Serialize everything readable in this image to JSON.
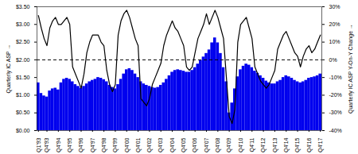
{
  "chart_data": {
    "type": "bar",
    "categories": [
      "Q1'93",
      null,
      null,
      "Q4'93",
      null,
      null,
      null,
      "Q4'94",
      null,
      null,
      null,
      "Q4'95",
      null,
      null,
      null,
      "Q4'96",
      null,
      null,
      null,
      "Q4'97",
      null,
      null,
      null,
      "Q4'98",
      null,
      null,
      null,
      "Q4'99",
      null,
      null,
      null,
      "Q4'00",
      null,
      null,
      null,
      "Q4'01",
      null,
      null,
      null,
      "Q4'02",
      null,
      null,
      null,
      "Q4'03",
      null,
      null,
      null,
      "Q4'04",
      null,
      null,
      null,
      "Q4'05",
      null,
      null,
      null,
      "Q4'06",
      null,
      null,
      null,
      "Q4'07",
      null,
      null,
      null,
      "Q4'08",
      null,
      null,
      null,
      "Q4'09",
      null,
      null,
      null,
      "Q4'10",
      null,
      null,
      null,
      "Q4'11",
      null,
      null,
      null,
      "Q4'12",
      null,
      null,
      null,
      "Q4'13",
      null,
      null,
      null,
      "Q4'14",
      null,
      null,
      null,
      "Q4'15",
      null,
      null,
      null,
      "Q4'16",
      null,
      null,
      null,
      "Q4'17"
    ],
    "series": [
      {
        "type": "bar",
        "color": "#0000EE",
        "values": [
          1.35,
          1.05,
          0.98,
          0.95,
          1.12,
          1.18,
          1.2,
          1.15,
          1.35,
          1.45,
          1.48,
          1.45,
          1.38,
          1.3,
          1.25,
          1.2,
          1.25,
          1.32,
          1.38,
          1.42,
          1.45,
          1.5,
          1.48,
          1.44,
          1.38,
          1.28,
          1.22,
          1.18,
          1.3,
          1.45,
          1.6,
          1.72,
          1.75,
          1.7,
          1.6,
          1.5,
          1.38,
          1.32,
          1.28,
          1.25,
          1.22,
          1.2,
          1.22,
          1.28,
          1.35,
          1.45,
          1.55,
          1.65,
          1.7,
          1.72,
          1.7,
          1.68,
          1.65,
          1.65,
          1.7,
          1.78,
          1.88,
          1.98,
          2.08,
          2.18,
          2.28,
          2.48,
          2.62,
          2.48,
          2.18,
          1.78,
          1.38,
          0.5,
          0.78,
          1.18,
          1.52,
          1.72,
          1.82,
          1.88,
          1.85,
          1.78,
          1.68,
          1.62,
          1.55,
          1.48,
          1.4,
          1.35,
          1.32,
          1.32,
          1.38,
          1.42,
          1.5,
          1.55,
          1.52,
          1.48,
          1.42,
          1.38,
          1.35,
          1.38,
          1.42,
          1.48,
          1.5,
          1.52,
          1.55,
          1.6
        ]
      },
      {
        "type": "line",
        "axis": "y2",
        "color": "#000000",
        "values": [
          25,
          18,
          12,
          8,
          18,
          22,
          24,
          20,
          20,
          22,
          24,
          20,
          -4,
          -8,
          -12,
          -16,
          -8,
          4,
          10,
          14,
          14,
          14,
          10,
          8,
          -6,
          -14,
          -18,
          -14,
          14,
          22,
          26,
          28,
          24,
          18,
          12,
          8,
          -22,
          -24,
          -26,
          -22,
          -14,
          -10,
          -6,
          -2,
          8,
          14,
          18,
          22,
          18,
          16,
          12,
          8,
          -4,
          -6,
          -4,
          4,
          12,
          16,
          20,
          26,
          20,
          24,
          28,
          24,
          18,
          12,
          -10,
          -32,
          -36,
          -28,
          10,
          20,
          22,
          24,
          18,
          12,
          -4,
          -8,
          -12,
          -14,
          -16,
          -14,
          -10,
          -6,
          6,
          10,
          14,
          16,
          12,
          8,
          4,
          2,
          -4,
          2,
          6,
          8,
          4,
          6,
          10,
          14
        ]
      }
    ],
    "ylabel": "Quarterly IC ASP",
    "y2label": "Quarterly IC ASP Y-On-Y Change",
    "ylim": [
      0.0,
      3.5
    ],
    "yticks": [
      {
        "value": 0.0,
        "label": "$0.00"
      },
      {
        "value": 0.5,
        "label": "$0.50"
      },
      {
        "value": 1.0,
        "label": "$1.00"
      },
      {
        "value": 1.5,
        "label": "$1.50"
      },
      {
        "value": 2.0,
        "label": "$2.00"
      },
      {
        "value": 2.5,
        "label": "$2.50"
      },
      {
        "value": 3.0,
        "label": "$3.00"
      },
      {
        "value": 3.5,
        "label": "$3.50"
      }
    ],
    "y2lim": [
      -40,
      30
    ],
    "y2ticks": [
      {
        "value": -40,
        "label": "-40%"
      },
      {
        "value": -30,
        "label": "-30%"
      },
      {
        "value": -20,
        "label": "-20%"
      },
      {
        "value": -10,
        "label": "-10%"
      },
      {
        "value": 0,
        "label": "0%"
      },
      {
        "value": 10,
        "label": "10%"
      },
      {
        "value": 20,
        "label": "20%"
      },
      {
        "value": 30,
        "label": "30%"
      }
    ],
    "reference_line": {
      "y": 2.0,
      "line_style": "dashed",
      "color": "#000000"
    },
    "grid": false
  }
}
